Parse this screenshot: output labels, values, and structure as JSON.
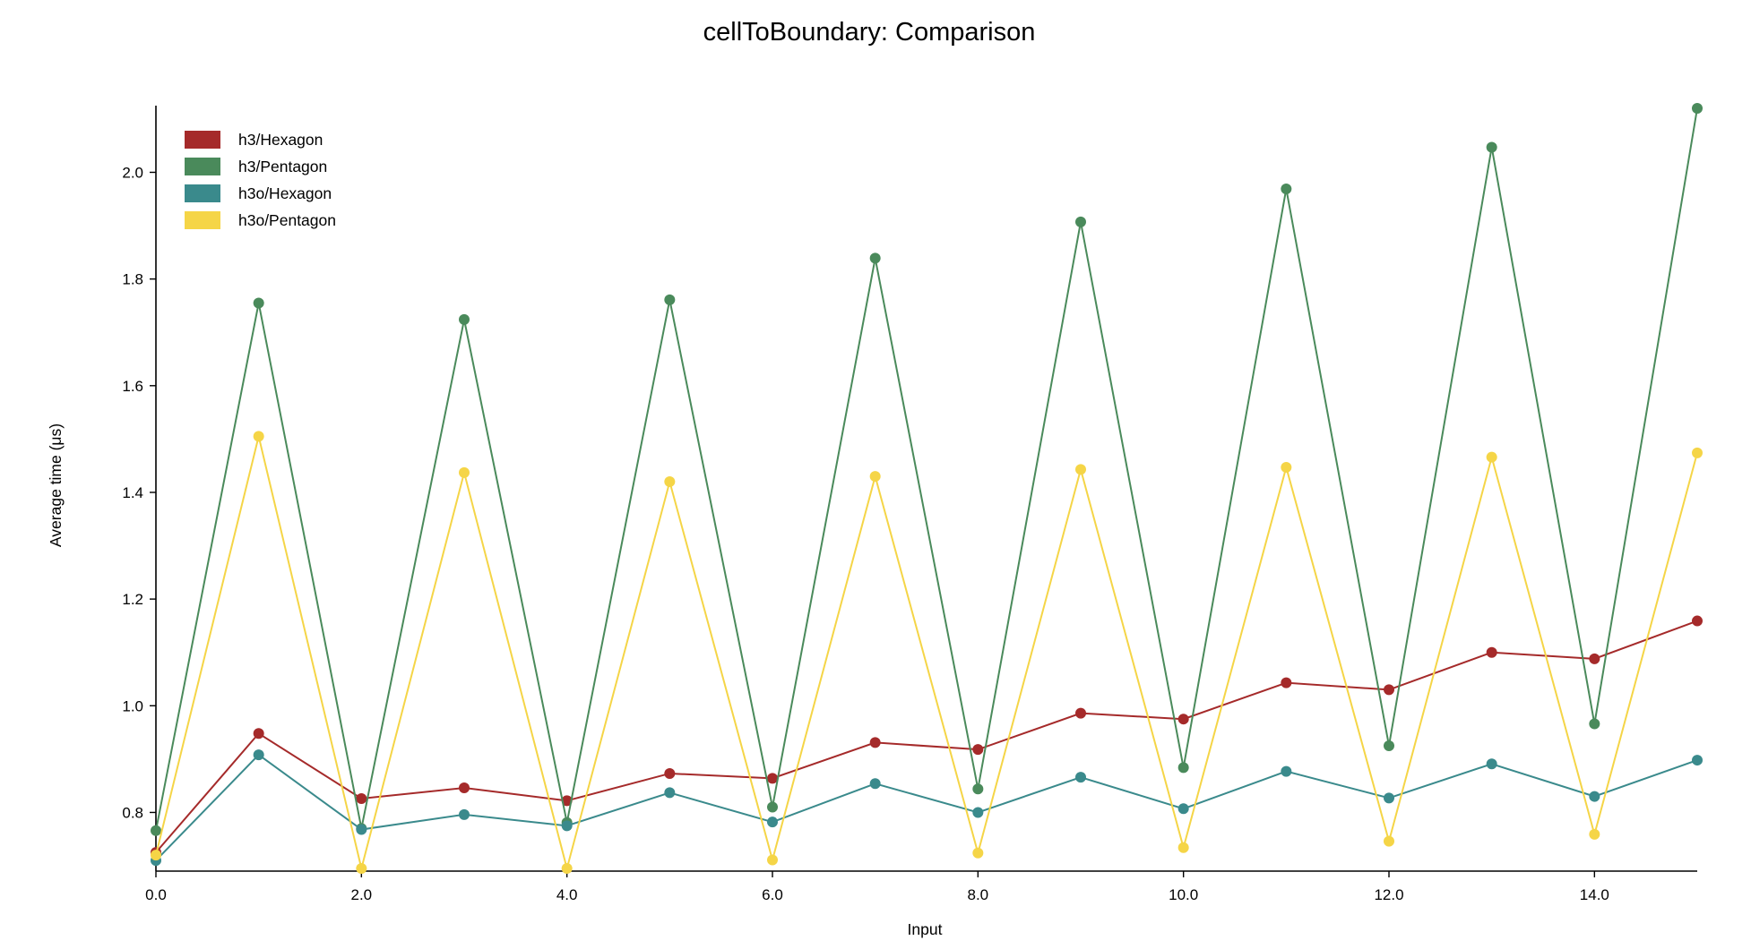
{
  "chart_data": {
    "type": "line",
    "title": "cellToBoundary: Comparison",
    "xlabel": "Input",
    "ylabel": "Average time (μs)",
    "xlim": [
      0,
      15
    ],
    "ylim": [
      0.69,
      2.125
    ],
    "xticks": [
      0,
      2,
      4,
      6,
      8,
      10,
      12,
      14
    ],
    "xtick_labels": [
      "0.0",
      "2.0",
      "4.0",
      "6.0",
      "8.0",
      "10.0",
      "12.0",
      "14.0"
    ],
    "yticks": [
      0.8,
      1.0,
      1.2,
      1.4,
      1.6,
      1.8,
      2.0
    ],
    "ytick_labels": [
      "0.8",
      "1.0",
      "1.2",
      "1.4",
      "1.6",
      "1.8",
      "2.0"
    ],
    "grid": false,
    "legend_position": "top-left",
    "x": [
      0,
      1,
      2,
      3,
      4,
      5,
      6,
      7,
      8,
      9,
      10,
      11,
      12,
      13,
      14,
      15
    ],
    "series": [
      {
        "name": "h3/Hexagon",
        "color": "#a52a2a",
        "values": [
          0.725,
          0.948,
          0.826,
          0.846,
          0.822,
          0.873,
          0.864,
          0.931,
          0.918,
          0.986,
          0.975,
          1.043,
          1.03,
          1.1,
          1.088,
          1.159
        ]
      },
      {
        "name": "h3/Pentagon",
        "color": "#4a8a5b",
        "values": [
          0.766,
          1.755,
          0.77,
          1.724,
          0.781,
          1.761,
          0.81,
          1.839,
          0.844,
          1.907,
          0.884,
          1.969,
          0.925,
          2.047,
          0.966,
          2.12
        ]
      },
      {
        "name": "h3o/Hexagon",
        "color": "#3a8a8c",
        "values": [
          0.71,
          0.908,
          0.768,
          0.796,
          0.775,
          0.837,
          0.782,
          0.854,
          0.8,
          0.866,
          0.807,
          0.877,
          0.827,
          0.891,
          0.83,
          0.898
        ]
      },
      {
        "name": "h3o/Pentagon",
        "color": "#f5d547",
        "values": [
          0.72,
          1.505,
          0.695,
          1.437,
          0.695,
          1.42,
          0.711,
          1.43,
          0.724,
          1.443,
          0.734,
          1.447,
          0.746,
          1.466,
          0.759,
          1.474
        ]
      }
    ]
  }
}
